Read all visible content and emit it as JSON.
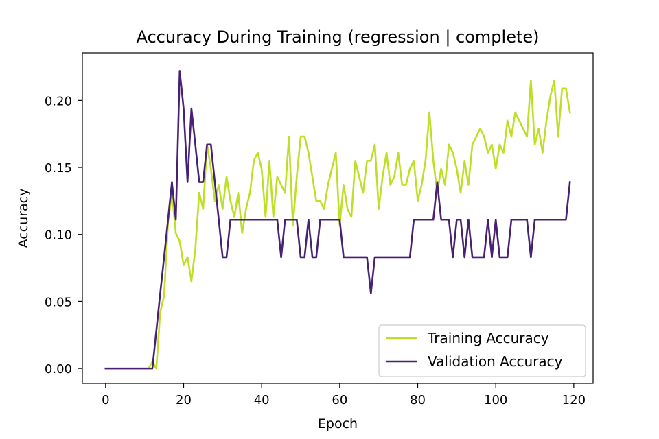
{
  "chart_data": {
    "type": "line",
    "title": "Accuracy During Training (regression | complete)",
    "xlabel": "Epoch",
    "ylabel": "Accuracy",
    "xlim": [
      -5.95,
      124.95
    ],
    "ylim": [
      -0.0112,
      0.2355
    ],
    "xticks": [
      0,
      20,
      40,
      60,
      80,
      100,
      120
    ],
    "xtick_labels": [
      "0",
      "20",
      "40",
      "60",
      "80",
      "100",
      "120"
    ],
    "yticks": [
      0.0,
      0.05,
      0.1,
      0.15,
      0.2
    ],
    "ytick_labels": [
      "0.00",
      "0.05",
      "0.10",
      "0.15",
      "0.20"
    ],
    "grid": false,
    "legend_position": "lower-right",
    "x": [
      0,
      1,
      2,
      3,
      4,
      5,
      6,
      7,
      8,
      9,
      10,
      11,
      12,
      13,
      14,
      15,
      16,
      17,
      18,
      19,
      20,
      21,
      22,
      23,
      24,
      25,
      26,
      27,
      28,
      29,
      30,
      31,
      32,
      33,
      34,
      35,
      36,
      37,
      38,
      39,
      40,
      41,
      42,
      43,
      44,
      45,
      46,
      47,
      48,
      49,
      50,
      51,
      52,
      53,
      54,
      55,
      56,
      57,
      58,
      59,
      60,
      61,
      62,
      63,
      64,
      65,
      66,
      67,
      68,
      69,
      70,
      71,
      72,
      73,
      74,
      75,
      76,
      77,
      78,
      79,
      80,
      81,
      82,
      83,
      84,
      85,
      86,
      87,
      88,
      89,
      90,
      91,
      92,
      93,
      94,
      95,
      96,
      97,
      98,
      99,
      100,
      101,
      102,
      103,
      104,
      105,
      106,
      107,
      108,
      109,
      110,
      111,
      112,
      113,
      114,
      115,
      116,
      117,
      118,
      119
    ],
    "series": [
      {
        "name": "Training Accuracy",
        "color": "#bddf26",
        "values": [
          0,
          0,
          0,
          0,
          0,
          0,
          0,
          0,
          0,
          0,
          0,
          0,
          0.005,
          0,
          0.042,
          0.054,
          0.109,
          0.131,
          0.101,
          0.095,
          0.077,
          0.083,
          0.065,
          0.089,
          0.131,
          0.119,
          0.167,
          0.149,
          0.125,
          0.137,
          0.119,
          0.143,
          0.125,
          0.113,
          0.131,
          0.101,
          0.119,
          0.131,
          0.155,
          0.161,
          0.149,
          0.113,
          0.155,
          0.113,
          0.143,
          0.137,
          0.131,
          0.173,
          0.107,
          0.143,
          0.173,
          0.173,
          0.161,
          0.143,
          0.125,
          0.125,
          0.119,
          0.137,
          0.149,
          0.161,
          0.107,
          0.137,
          0.119,
          0.113,
          0.155,
          0.143,
          0.131,
          0.155,
          0.155,
          0.167,
          0.119,
          0.143,
          0.161,
          0.137,
          0.143,
          0.161,
          0.137,
          0.137,
          0.149,
          0.155,
          0.125,
          0.137,
          0.155,
          0.191,
          0.155,
          0.131,
          0.149,
          0.137,
          0.167,
          0.161,
          0.149,
          0.131,
          0.155,
          0.137,
          0.167,
          0.173,
          0.179,
          0.173,
          0.161,
          0.167,
          0.149,
          0.167,
          0.161,
          0.185,
          0.173,
          0.191,
          0.185,
          0.179,
          0.173,
          0.215,
          0.167,
          0.179,
          0.161,
          0.185,
          0.203,
          0.215,
          0.173,
          0.209,
          0.209,
          0.191
        ]
      },
      {
        "name": "Validation Accuracy",
        "color": "#482173",
        "values": [
          0,
          0,
          0,
          0,
          0,
          0,
          0,
          0,
          0,
          0,
          0,
          0,
          0,
          0.028,
          0.056,
          0.083,
          0.111,
          0.139,
          0.111,
          0.222,
          0.194,
          0.139,
          0.194,
          0.167,
          0.139,
          0.139,
          0.167,
          0.167,
          0.139,
          0.111,
          0.083,
          0.083,
          0.111,
          0.111,
          0.111,
          0.111,
          0.111,
          0.111,
          0.111,
          0.111,
          0.111,
          0.111,
          0.111,
          0.111,
          0.111,
          0.083,
          0.111,
          0.111,
          0.111,
          0.111,
          0.083,
          0.083,
          0.111,
          0.083,
          0.083,
          0.111,
          0.111,
          0.111,
          0.111,
          0.111,
          0.111,
          0.083,
          0.083,
          0.083,
          0.083,
          0.083,
          0.083,
          0.083,
          0.056,
          0.083,
          0.083,
          0.083,
          0.083,
          0.083,
          0.083,
          0.083,
          0.083,
          0.083,
          0.083,
          0.111,
          0.111,
          0.111,
          0.111,
          0.111,
          0.111,
          0.139,
          0.111,
          0.111,
          0.111,
          0.083,
          0.111,
          0.111,
          0.083,
          0.111,
          0.083,
          0.083,
          0.083,
          0.083,
          0.111,
          0.083,
          0.111,
          0.083,
          0.083,
          0.083,
          0.111,
          0.111,
          0.111,
          0.111,
          0.111,
          0.083,
          0.111,
          0.111,
          0.111,
          0.111,
          0.111,
          0.111,
          0.111,
          0.111,
          0.111,
          0.139
        ]
      }
    ]
  }
}
